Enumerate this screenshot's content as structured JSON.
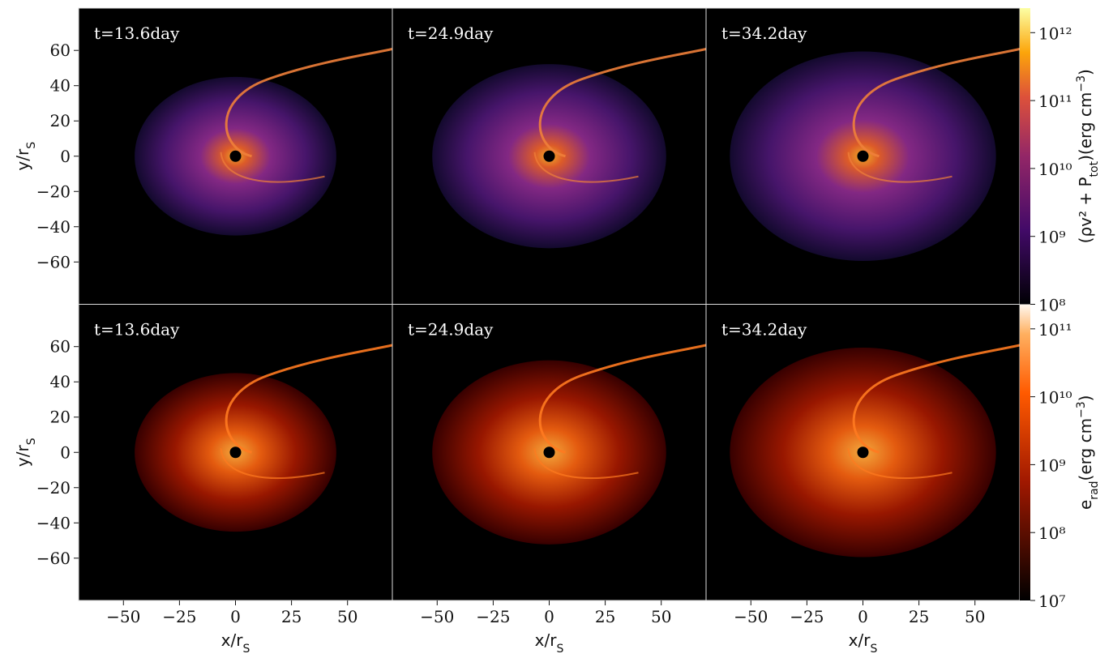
{
  "chart_data": [
    {
      "type": "heatmap",
      "title": "t=13.6day",
      "colormap": "inferno",
      "xlim": [
        -70,
        70
      ],
      "ylim": [
        -84,
        84
      ],
      "yticks": [
        {
          "value": -60,
          "label": "−60"
        },
        {
          "value": -40,
          "label": "−40"
        },
        {
          "value": -20,
          "label": "−20"
        },
        0,
        20,
        40,
        60
      ],
      "ylabel": [
        {
          "text": "y/r"
        },
        {
          "text": "S",
          "shift": "sub"
        }
      ]
    },
    {
      "type": "heatmap",
      "title": "t=24.9day",
      "colormap": "inferno",
      "xlim": [
        -70,
        70
      ],
      "ylim": [
        -84,
        84
      ]
    },
    {
      "type": "heatmap",
      "title": "t=34.2day",
      "colormap": "inferno",
      "xlim": [
        -70,
        70
      ],
      "ylim": [
        -84,
        84
      ]
    },
    {
      "type": "heatmap",
      "title": "t=13.6day",
      "colormap": "heat",
      "xlim": [
        -70,
        70
      ],
      "ylim": [
        -84,
        84
      ],
      "yticks": [
        {
          "value": -60,
          "label": "−60"
        },
        {
          "value": -40,
          "label": "−40"
        },
        {
          "value": -20,
          "label": "−20"
        },
        0,
        20,
        40,
        60
      ],
      "ylabel": [
        {
          "text": "y/r"
        },
        {
          "text": "S",
          "shift": "sub"
        }
      ],
      "xticks": [
        {
          "value": -50,
          "label": "−50"
        },
        {
          "value": -25,
          "label": "−25"
        },
        0,
        25,
        50
      ],
      "xlabel": [
        {
          "text": "x/r"
        },
        {
          "text": "S",
          "shift": "sub"
        }
      ]
    },
    {
      "type": "heatmap",
      "title": "t=24.9day",
      "colormap": "heat",
      "xlim": [
        -70,
        70
      ],
      "ylim": [
        -84,
        84
      ],
      "xticks": [
        {
          "value": -50,
          "label": "−50"
        },
        {
          "value": -25,
          "label": "−25"
        },
        0,
        25,
        50
      ],
      "xlabel": [
        {
          "text": "x/r"
        },
        {
          "text": "S",
          "shift": "sub"
        }
      ]
    },
    {
      "type": "heatmap",
      "title": "t=34.2day",
      "colormap": "heat",
      "xlim": [
        -70,
        70
      ],
      "ylim": [
        -84,
        84
      ],
      "xticks": [
        {
          "value": -50,
          "label": "−50"
        },
        {
          "value": -25,
          "label": "−25"
        },
        0,
        25,
        50
      ],
      "xlabel": [
        {
          "text": "x/r"
        },
        {
          "text": "S",
          "shift": "sub"
        }
      ]
    },
    {
      "type": "colorbar",
      "colormap": "inferno",
      "log": true,
      "lim": [
        100000000,
        2300000000000
      ],
      "ticks": [
        {
          "value": 100000000,
          "label": "10⁸"
        },
        {
          "value": 1000000000,
          "label": "10⁹"
        },
        {
          "value": 10000000000,
          "label": "10¹⁰"
        },
        {
          "value": 100000000000,
          "label": "10¹¹"
        },
        {
          "value": 1000000000000,
          "label": "10¹²"
        }
      ],
      "label": [
        {
          "text": "(ρv² + P"
        },
        {
          "text": "tot",
          "shift": "sub"
        },
        {
          "text": ")(erg cm"
        },
        {
          "text": "−3",
          "shift": "sup"
        },
        {
          "text": ")"
        }
      ]
    },
    {
      "type": "colorbar",
      "colormap": "heat",
      "log": true,
      "lim": [
        10000000,
        230000000000
      ],
      "ticks": [
        {
          "value": 10000000,
          "label": "10⁷"
        },
        {
          "value": 100000000,
          "label": "10⁸"
        },
        {
          "value": 1000000000,
          "label": "10⁹"
        },
        {
          "value": 10000000000,
          "label": "10¹⁰"
        },
        {
          "value": 100000000000,
          "label": "10¹¹"
        }
      ],
      "label": [
        {
          "text": "e"
        },
        {
          "text": "rad",
          "shift": "sub"
        },
        {
          "text": "(erg cm"
        },
        {
          "text": "−3",
          "shift": "sup"
        },
        {
          "text": ")"
        }
      ]
    }
  ]
}
